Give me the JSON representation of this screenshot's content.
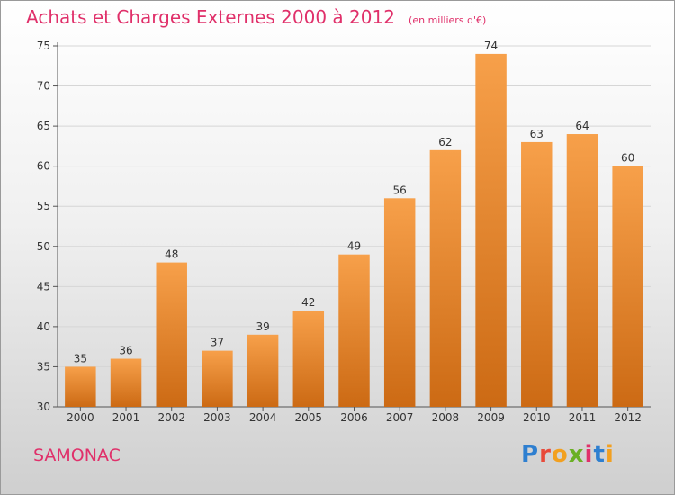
{
  "chart_data": {
    "type": "bar",
    "title": "Achats et Charges Externes 2000 à 2012",
    "subtitle": "(en milliers d'€)",
    "categories": [
      "2000",
      "2001",
      "2002",
      "2003",
      "2004",
      "2005",
      "2006",
      "2007",
      "2008",
      "2009",
      "2010",
      "2011",
      "2012"
    ],
    "values": [
      35,
      36,
      48,
      37,
      39,
      42,
      49,
      56,
      62,
      74,
      63,
      64,
      60
    ],
    "ylim": [
      30,
      75
    ],
    "yticks": [
      30,
      35,
      40,
      45,
      50,
      55,
      60,
      65,
      70,
      75
    ],
    "grid": true,
    "bar_color_top": "#f7a04a",
    "bar_color_bottom": "#cc6a14"
  },
  "footer": {
    "place_name": "SAMONAC",
    "logo_letters": [
      {
        "char": "P",
        "color": "#2e7fd0"
      },
      {
        "char": "r",
        "color": "#e84a3a"
      },
      {
        "char": "o",
        "color": "#f2a020"
      },
      {
        "char": "x",
        "color": "#6ab024"
      },
      {
        "char": "i",
        "color": "#e0306a"
      },
      {
        "char": "t",
        "color": "#2e7fd0"
      },
      {
        "char": "i",
        "color": "#f2a020"
      }
    ]
  }
}
